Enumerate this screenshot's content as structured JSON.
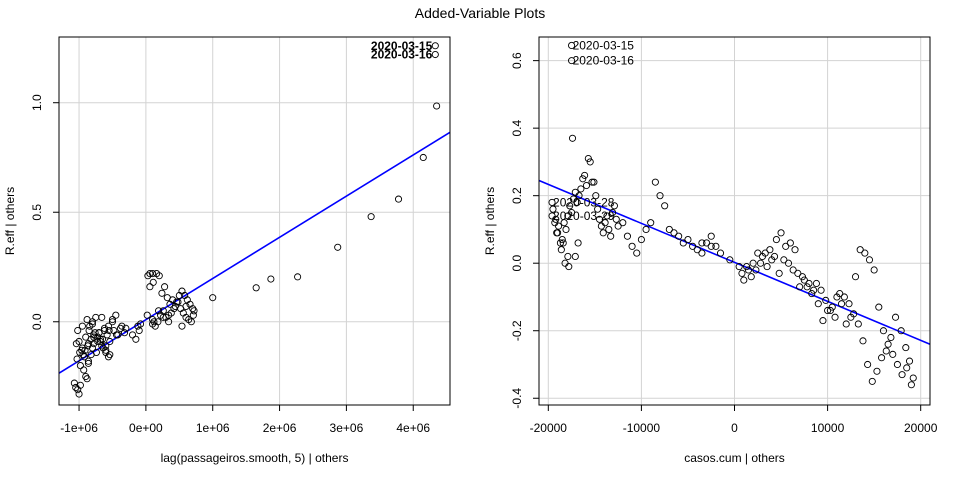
{
  "figure": {
    "title": "Added-Variable Plots"
  },
  "chart_data": [
    {
      "type": "scatter",
      "title": "",
      "xlabel": "lag(passageiros.smooth, 5) | others",
      "ylabel": "R.eff  | others",
      "xlim": [
        -1300000,
        4550000
      ],
      "ylim": [
        -0.38,
        1.3
      ],
      "xticks": [
        -1000000,
        0,
        1000000,
        2000000,
        3000000,
        4000000
      ],
      "xtick_labels": [
        "-1e+06",
        "0e+00",
        "1e+06",
        "2e+06",
        "3e+06",
        "4e+06"
      ],
      "yticks": [
        0.0,
        0.5,
        1.0
      ],
      "ytick_labels": [
        "0.0",
        "0.5",
        "1.0"
      ],
      "grid": true,
      "fit_line": {
        "x": [
          -1300000,
          4550000
        ],
        "y": [
          -0.235,
          0.865
        ],
        "color": "#0000ff"
      },
      "point_labels": [
        {
          "text": "2020-03-15",
          "x": 4330000,
          "y": 1.26
        },
        {
          "text": "2020-03-16",
          "x": 4330000,
          "y": 1.22
        }
      ],
      "x": [
        4330000,
        4330000,
        4350000,
        4150000,
        3780000,
        3370000,
        2870000,
        2270000,
        1870000,
        1650000,
        1000000,
        -1050000,
        -1020000,
        -1000000,
        -980000,
        -1070000,
        -1030000,
        -990000,
        -950000,
        -1000000,
        -1040000,
        -980000,
        -930000,
        -900000,
        -880000,
        -860000,
        -940000,
        -910000,
        -870000,
        -820000,
        -780000,
        -1020000,
        -950000,
        -880000,
        -800000,
        -760000,
        -720000,
        -680000,
        -640000,
        -600000,
        -560000,
        -960000,
        -920000,
        -860000,
        -820000,
        -780000,
        -700000,
        -660000,
        -620000,
        -580000,
        -540000,
        -900000,
        -850000,
        -800000,
        -750000,
        -700000,
        -650000,
        -600000,
        -550000,
        -500000,
        -450000,
        -860000,
        -800000,
        -740000,
        -680000,
        -620000,
        -560000,
        -500000,
        -440000,
        -380000,
        -320000,
        -840000,
        -780000,
        -720000,
        -660000,
        -600000,
        -540000,
        -480000,
        -420000,
        -360000,
        -300000,
        -200000,
        -150000,
        -100000,
        -120000,
        -80000,
        30000,
        60000,
        100000,
        160000,
        200000,
        240000,
        280000,
        320000,
        360000,
        400000,
        440000,
        480000,
        520000,
        560000,
        600000,
        640000,
        680000,
        710000,
        720000,
        700000,
        660000,
        620000,
        580000,
        540000,
        500000,
        460000,
        420000,
        380000,
        340000,
        300000,
        260000,
        220000,
        180000,
        140000,
        100000,
        20000,
        60000,
        110000,
        190000,
        260000,
        340000,
        100000,
        120000,
        540000,
        600000
      ],
      "y": [
        1.26,
        1.22,
        0.985,
        0.75,
        0.56,
        0.48,
        0.34,
        0.205,
        0.195,
        0.155,
        0.11,
        -0.3,
        -0.31,
        -0.33,
        -0.29,
        -0.28,
        -0.17,
        -0.14,
        -0.12,
        -0.09,
        -0.1,
        -0.2,
        -0.22,
        -0.25,
        -0.26,
        -0.19,
        -0.15,
        -0.13,
        -0.11,
        -0.08,
        -0.06,
        -0.04,
        -0.02,
        0.01,
        0.0,
        -0.05,
        -0.07,
        -0.09,
        -0.12,
        -0.14,
        -0.16,
        -0.13,
        -0.16,
        -0.18,
        -0.15,
        -0.1,
        -0.05,
        0.02,
        -0.03,
        -0.06,
        -0.09,
        -0.07,
        -0.04,
        -0.01,
        0.02,
        -0.05,
        -0.08,
        -0.11,
        -0.04,
        0.0,
        0.03,
        -0.1,
        -0.12,
        -0.14,
        -0.08,
        -0.04,
        -0.02,
        0.01,
        -0.06,
        -0.03,
        -0.05,
        -0.02,
        -0.07,
        -0.09,
        -0.11,
        -0.13,
        -0.15,
        -0.04,
        -0.06,
        -0.02,
        -0.03,
        -0.06,
        -0.08,
        -0.04,
        -0.02,
        -0.01,
        0.21,
        0.22,
        0.22,
        0.22,
        0.21,
        0.13,
        0.16,
        0.11,
        0.08,
        0.1,
        0.07,
        0.09,
        0.06,
        0.04,
        0.02,
        0.01,
        0.0,
        0.03,
        0.05,
        0.06,
        0.08,
        0.1,
        0.12,
        0.14,
        0.12,
        0.09,
        0.06,
        0.04,
        0.03,
        0.02,
        0.05,
        0.03,
        0.0,
        -0.02,
        0.01,
        0.03,
        0.16,
        0.18,
        0.05,
        0.02,
        0.0,
        -0.01,
        0.0,
        -0.02,
        0.07
      ]
    },
    {
      "type": "scatter",
      "title": "",
      "xlabel": "casos.cum | others",
      "ylabel": "R.eff  | others",
      "xlim": [
        -21000,
        21000
      ],
      "ylim": [
        -0.42,
        0.67
      ],
      "xticks": [
        -20000,
        -10000,
        0,
        10000,
        20000
      ],
      "xtick_labels": [
        "-20000",
        "-10000",
        "0",
        "10000",
        "20000"
      ],
      "yticks": [
        -0.4,
        -0.2,
        0.0,
        0.2,
        0.4,
        0.6
      ],
      "ytick_labels": [
        "-0.4",
        "-0.2",
        "0.0",
        "0.2",
        "0.4",
        "0.6"
      ],
      "grid": true,
      "fit_line": {
        "x": [
          -21000,
          21000
        ],
        "y": [
          0.245,
          -0.24
        ],
        "color": "#0000ff"
      },
      "point_labels": [
        {
          "text": "2020-03-15",
          "x": -17500,
          "y": 0.645
        },
        {
          "text": "2020-03-16",
          "x": -17500,
          "y": 0.6
        },
        {
          "text": "2020-03-28",
          "x": -19600,
          "y": 0.18
        },
        {
          "text": "2020-03-29",
          "x": -19600,
          "y": 0.14
        }
      ],
      "x": [
        -17500,
        -17500,
        -17400,
        -19600,
        -19600,
        -19500,
        -19300,
        -19100,
        -18900,
        -18700,
        -18500,
        -18300,
        -18100,
        -17900,
        -17700,
        -17500,
        -17300,
        -17100,
        -16900,
        -16700,
        -16500,
        -16300,
        -16100,
        -15900,
        -15700,
        -15500,
        -15300,
        -15100,
        -14900,
        -14700,
        -14500,
        -14300,
        -14100,
        -13900,
        -13700,
        -13500,
        -13300,
        -13100,
        -12900,
        -12700,
        -12500,
        -12000,
        -11500,
        -11000,
        -10500,
        -10000,
        -9500,
        -9000,
        -8500,
        -8000,
        -7500,
        -7000,
        -6500,
        -6000,
        -5500,
        -5000,
        -4500,
        -4000,
        -3500,
        -3000,
        -2500,
        -2000,
        -18600,
        -18200,
        -17800,
        -17900,
        -18400,
        -19000,
        -19200,
        -17100,
        -16800,
        500,
        1000,
        1500,
        2000,
        2500,
        3000,
        3500,
        4000,
        4500,
        5000,
        5500,
        6000,
        6500,
        7000,
        7500,
        8000,
        8500,
        9000,
        9500,
        10000,
        10500,
        11000,
        11500,
        12000,
        12500,
        13000,
        13500,
        14000,
        14500,
        15000,
        15500,
        16000,
        16500,
        17000,
        17500,
        18000,
        18500,
        19000,
        19200,
        18800,
        18400,
        17900,
        17300,
        16800,
        16300,
        15800,
        15300,
        14800,
        14300,
        13800,
        13300,
        12800,
        12300,
        11800,
        11300,
        10800,
        10300,
        9800,
        9300,
        8800,
        8300,
        7800,
        7300,
        6800,
        6300,
        5800,
        5300,
        4800,
        4300,
        3800,
        3300,
        2800,
        2300,
        1800,
        1300,
        800,
        -500,
        -1500,
        -2500,
        -3500
      ],
      "y": [
        0.645,
        0.6,
        0.37,
        0.18,
        0.14,
        0.16,
        0.12,
        0.09,
        0.11,
        0.06,
        0.07,
        0.12,
        0.1,
        0.14,
        0.17,
        0.15,
        0.19,
        0.21,
        0.18,
        0.2,
        0.22,
        0.25,
        0.26,
        0.23,
        0.31,
        0.3,
        0.24,
        0.24,
        0.2,
        0.16,
        0.13,
        0.11,
        0.09,
        0.12,
        0.14,
        0.1,
        0.08,
        0.15,
        0.17,
        0.13,
        0.11,
        0.12,
        0.08,
        0.05,
        0.03,
        0.07,
        0.1,
        0.12,
        0.24,
        0.2,
        0.17,
        0.1,
        0.09,
        0.08,
        0.06,
        0.07,
        0.05,
        0.04,
        0.03,
        0.06,
        0.08,
        0.05,
        0.04,
        0.0,
        -0.01,
        0.02,
        0.06,
        0.09,
        0.13,
        0.02,
        0.06,
        -0.01,
        -0.05,
        -0.02,
        0.0,
        0.03,
        0.02,
        -0.01,
        0.01,
        0.07,
        0.09,
        0.05,
        0.06,
        0.04,
        -0.07,
        -0.05,
        -0.06,
        -0.08,
        -0.12,
        -0.17,
        -0.14,
        -0.13,
        -0.1,
        -0.12,
        -0.18,
        -0.16,
        -0.04,
        0.04,
        0.03,
        0.01,
        -0.02,
        -0.13,
        -0.2,
        -0.24,
        -0.27,
        -0.3,
        -0.33,
        -0.31,
        -0.36,
        -0.34,
        -0.29,
        -0.25,
        -0.2,
        -0.16,
        -0.22,
        -0.26,
        -0.28,
        -0.32,
        -0.35,
        -0.3,
        -0.23,
        -0.18,
        -0.15,
        -0.12,
        -0.1,
        -0.09,
        -0.16,
        -0.14,
        -0.11,
        -0.08,
        -0.06,
        -0.09,
        -0.07,
        -0.04,
        -0.03,
        -0.02,
        0.0,
        0.01,
        -0.03,
        0.02,
        0.04,
        0.03,
        0.0,
        -0.02,
        -0.04,
        -0.01,
        -0.03,
        0.01,
        0.03,
        0.05,
        0.06
      ]
    }
  ]
}
